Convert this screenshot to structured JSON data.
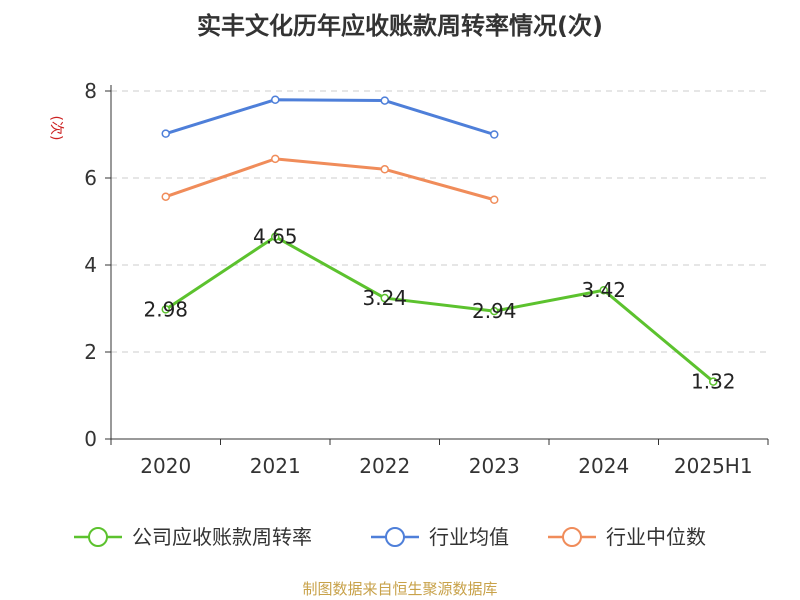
{
  "chart_data": {
    "type": "line",
    "title": "实丰文化历年应收账款周转率情况(次)",
    "ylabel": "(次)",
    "xlabel": "",
    "categories": [
      "2020",
      "2021",
      "2022",
      "2023",
      "2024",
      "2025H1"
    ],
    "ylim": [
      0,
      8
    ],
    "yticks": [
      0,
      2,
      4,
      6,
      8
    ],
    "grid": true,
    "legend_position": "bottom",
    "series": [
      {
        "name": "公司应收账款周转率",
        "color": "#5cc22e",
        "values": [
          2.98,
          4.65,
          3.24,
          2.94,
          3.42,
          1.32
        ],
        "labels": [
          "2.98",
          "4.65",
          "3.24",
          "2.94",
          "3.42",
          "1.32"
        ]
      },
      {
        "name": "行业均值",
        "color": "#4e7fd9",
        "values": [
          7.02,
          7.8,
          7.78,
          7.0,
          null,
          null
        ]
      },
      {
        "name": "行业中位数",
        "color": "#f08c5a",
        "values": [
          5.57,
          6.44,
          6.2,
          5.5,
          null,
          null
        ]
      }
    ]
  },
  "source": "制图数据来自恒生聚源数据库"
}
